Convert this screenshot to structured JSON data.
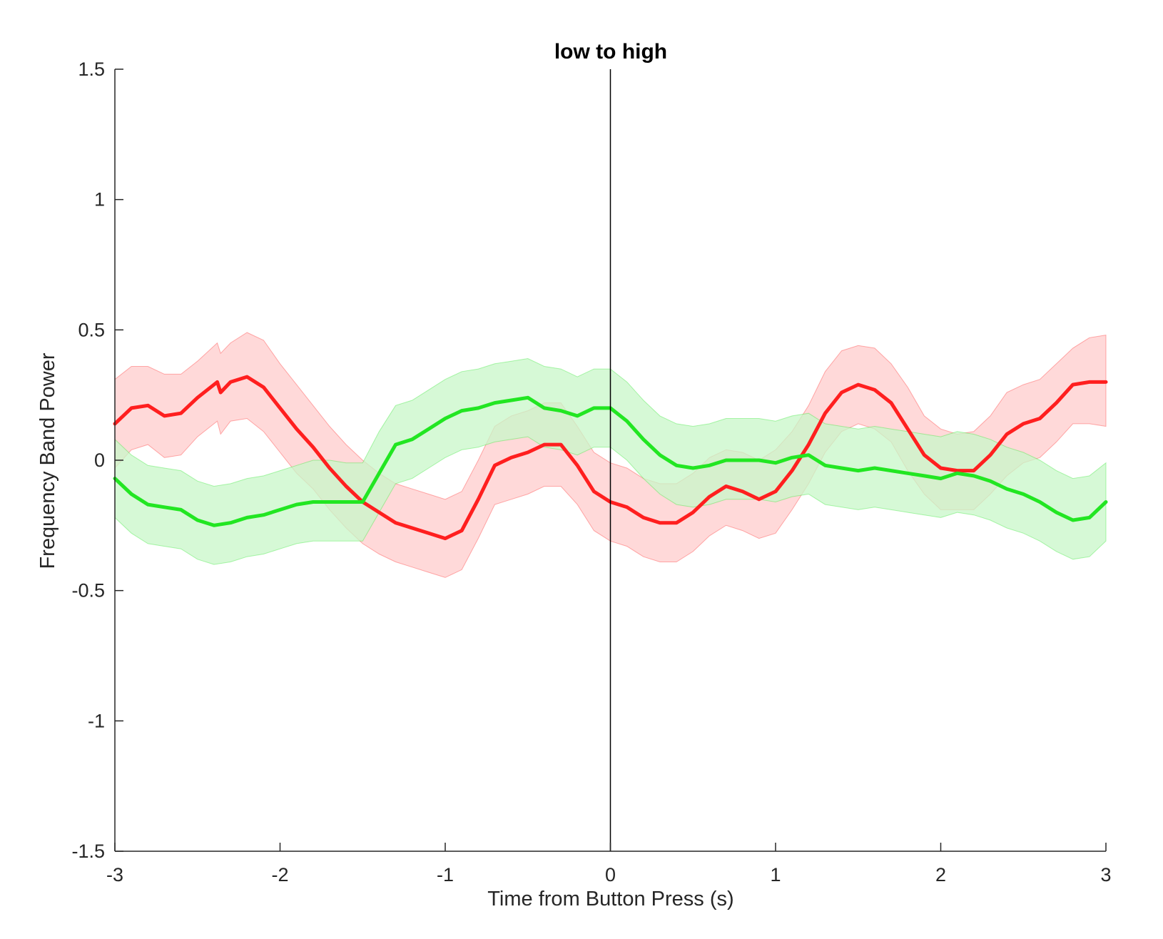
{
  "chart_data": {
    "type": "line",
    "title": "low to high",
    "xlabel": "Time from Button Press (s)",
    "ylabel": "Frequency Band Power",
    "xlim": [
      -3,
      3
    ],
    "ylim": [
      -1.5,
      1.5
    ],
    "xticks": [
      "-3",
      "-2",
      "-1",
      "0",
      "1",
      "2",
      "3"
    ],
    "yticks": [
      "-1.5",
      "-1",
      "-0.5",
      "0",
      "0.5",
      "1",
      "1.5"
    ],
    "grid": false,
    "legend": "none",
    "reference_line_x": 0,
    "series": [
      {
        "color": "#ff1f1f",
        "band_color": "#ffcccc",
        "x": [
          -3.0,
          -2.9,
          -2.8,
          -2.7,
          -2.6,
          -2.5,
          -2.38,
          -2.36,
          -2.3,
          -2.2,
          -2.1,
          -2.0,
          -1.9,
          -1.8,
          -1.7,
          -1.6,
          -1.5,
          -1.4,
          -1.3,
          -1.2,
          -1.1,
          -1.0,
          -0.9,
          -0.8,
          -0.7,
          -0.6,
          -0.5,
          -0.4,
          -0.3,
          -0.2,
          -0.1,
          0.0,
          0.1,
          0.2,
          0.3,
          0.4,
          0.5,
          0.6,
          0.7,
          0.8,
          0.9,
          1.0,
          1.1,
          1.2,
          1.3,
          1.4,
          1.5,
          1.6,
          1.7,
          1.8,
          1.9,
          2.0,
          2.1,
          2.2,
          2.3,
          2.4,
          2.5,
          2.6,
          2.7,
          2.8,
          2.9,
          3.0
        ],
        "mean": [
          0.14,
          0.2,
          0.21,
          0.17,
          0.18,
          0.24,
          0.3,
          0.26,
          0.3,
          0.32,
          0.28,
          0.2,
          0.12,
          0.05,
          -0.03,
          -0.1,
          -0.16,
          -0.2,
          -0.24,
          -0.26,
          -0.28,
          -0.3,
          -0.27,
          -0.15,
          -0.02,
          0.01,
          0.03,
          0.06,
          0.06,
          -0.02,
          -0.12,
          -0.16,
          -0.18,
          -0.22,
          -0.24,
          -0.24,
          -0.2,
          -0.14,
          -0.1,
          -0.12,
          -0.15,
          -0.12,
          -0.04,
          0.06,
          0.18,
          0.26,
          0.29,
          0.27,
          0.22,
          0.12,
          0.02,
          -0.03,
          -0.04,
          -0.04,
          0.02,
          0.1,
          0.14,
          0.16,
          0.22,
          0.29,
          0.3,
          0.3
        ],
        "upper": [
          0.31,
          0.36,
          0.36,
          0.33,
          0.33,
          0.38,
          0.45,
          0.41,
          0.45,
          0.49,
          0.46,
          0.37,
          0.29,
          0.21,
          0.13,
          0.06,
          0.0,
          -0.05,
          -0.09,
          -0.11,
          -0.13,
          -0.15,
          -0.12,
          0.0,
          0.13,
          0.17,
          0.19,
          0.22,
          0.22,
          0.13,
          0.03,
          -0.01,
          -0.03,
          -0.07,
          -0.09,
          -0.09,
          -0.05,
          0.01,
          0.04,
          0.03,
          0.0,
          0.04,
          0.11,
          0.21,
          0.34,
          0.42,
          0.44,
          0.43,
          0.37,
          0.28,
          0.17,
          0.12,
          0.1,
          0.11,
          0.17,
          0.26,
          0.29,
          0.31,
          0.37,
          0.43,
          0.47,
          0.48
        ],
        "lower": [
          -0.03,
          0.04,
          0.06,
          0.01,
          0.02,
          0.09,
          0.15,
          0.1,
          0.15,
          0.16,
          0.11,
          0.03,
          -0.05,
          -0.11,
          -0.19,
          -0.26,
          -0.32,
          -0.36,
          -0.39,
          -0.41,
          -0.43,
          -0.45,
          -0.42,
          -0.3,
          -0.17,
          -0.15,
          -0.13,
          -0.1,
          -0.1,
          -0.17,
          -0.27,
          -0.31,
          -0.33,
          -0.37,
          -0.39,
          -0.39,
          -0.35,
          -0.29,
          -0.25,
          -0.27,
          -0.3,
          -0.28,
          -0.19,
          -0.09,
          0.03,
          0.11,
          0.14,
          0.12,
          0.07,
          -0.04,
          -0.13,
          -0.19,
          -0.19,
          -0.19,
          -0.13,
          -0.06,
          -0.01,
          0.01,
          0.07,
          0.14,
          0.14,
          0.13
        ]
      },
      {
        "color": "#22e622",
        "band_color": "#c8f7c8",
        "x": [
          -3.0,
          -2.9,
          -2.8,
          -2.7,
          -2.6,
          -2.5,
          -2.4,
          -2.3,
          -2.2,
          -2.1,
          -2.0,
          -1.9,
          -1.8,
          -1.7,
          -1.6,
          -1.5,
          -1.4,
          -1.3,
          -1.2,
          -1.1,
          -1.0,
          -0.9,
          -0.8,
          -0.7,
          -0.6,
          -0.5,
          -0.4,
          -0.3,
          -0.2,
          -0.1,
          0.0,
          0.1,
          0.2,
          0.3,
          0.4,
          0.5,
          0.6,
          0.7,
          0.8,
          0.9,
          1.0,
          1.1,
          1.2,
          1.3,
          1.4,
          1.5,
          1.6,
          1.7,
          1.8,
          1.9,
          2.0,
          2.1,
          2.2,
          2.3,
          2.4,
          2.5,
          2.6,
          2.7,
          2.8,
          2.9,
          3.0
        ],
        "mean": [
          -0.07,
          -0.13,
          -0.17,
          -0.18,
          -0.19,
          -0.23,
          -0.25,
          -0.24,
          -0.22,
          -0.21,
          -0.19,
          -0.17,
          -0.16,
          -0.16,
          -0.16,
          -0.16,
          -0.05,
          0.06,
          0.08,
          0.12,
          0.16,
          0.19,
          0.2,
          0.22,
          0.23,
          0.24,
          0.2,
          0.19,
          0.17,
          0.2,
          0.2,
          0.15,
          0.08,
          0.02,
          -0.02,
          -0.03,
          -0.02,
          0.0,
          0.0,
          0.0,
          -0.01,
          0.01,
          0.02,
          -0.02,
          -0.03,
          -0.04,
          -0.03,
          -0.04,
          -0.05,
          -0.06,
          -0.07,
          -0.05,
          -0.06,
          -0.08,
          -0.11,
          -0.13,
          -0.16,
          -0.2,
          -0.23,
          -0.22,
          -0.16
        ],
        "upper": [
          0.08,
          0.02,
          -0.02,
          -0.03,
          -0.04,
          -0.08,
          -0.1,
          -0.09,
          -0.07,
          -0.06,
          -0.04,
          -0.02,
          0.0,
          0.0,
          -0.01,
          -0.01,
          0.11,
          0.21,
          0.23,
          0.27,
          0.31,
          0.34,
          0.35,
          0.37,
          0.38,
          0.39,
          0.36,
          0.35,
          0.32,
          0.35,
          0.35,
          0.3,
          0.23,
          0.17,
          0.14,
          0.13,
          0.14,
          0.16,
          0.16,
          0.16,
          0.15,
          0.17,
          0.18,
          0.14,
          0.13,
          0.12,
          0.13,
          0.12,
          0.11,
          0.1,
          0.09,
          0.11,
          0.1,
          0.08,
          0.05,
          0.03,
          0.0,
          -0.04,
          -0.07,
          -0.06,
          -0.01
        ],
        "lower": [
          -0.22,
          -0.28,
          -0.32,
          -0.33,
          -0.34,
          -0.38,
          -0.4,
          -0.39,
          -0.37,
          -0.36,
          -0.34,
          -0.32,
          -0.31,
          -0.31,
          -0.31,
          -0.31,
          -0.2,
          -0.09,
          -0.07,
          -0.03,
          0.01,
          0.04,
          0.05,
          0.07,
          0.08,
          0.09,
          0.05,
          0.04,
          0.02,
          0.05,
          0.05,
          0.0,
          -0.07,
          -0.13,
          -0.17,
          -0.18,
          -0.17,
          -0.15,
          -0.15,
          -0.15,
          -0.16,
          -0.14,
          -0.13,
          -0.17,
          -0.18,
          -0.19,
          -0.18,
          -0.19,
          -0.2,
          -0.21,
          -0.22,
          -0.2,
          -0.21,
          -0.23,
          -0.26,
          -0.28,
          -0.31,
          -0.35,
          -0.38,
          -0.37,
          -0.31
        ]
      }
    ]
  }
}
